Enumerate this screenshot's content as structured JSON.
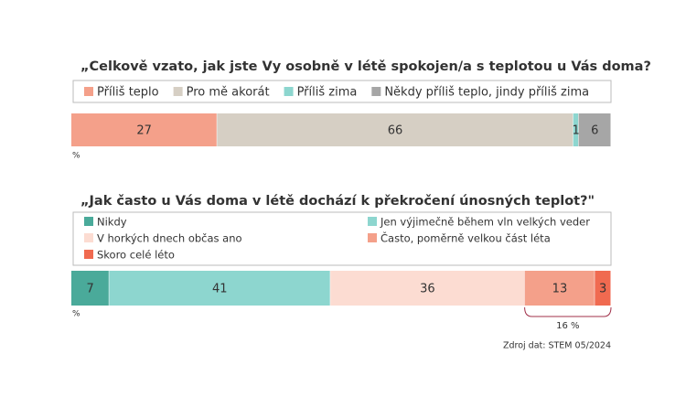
{
  "chart_data": [
    {
      "type": "stacked-bar",
      "title": "„Celkově vzato, jak jste Vy osobně v létě spokojen/a s teplotou u Vás doma?",
      "unit": "%",
      "series": [
        {
          "name": "Příliš teplo",
          "color": "#f4a08a",
          "values": [
            27
          ]
        },
        {
          "name": "Pro mě akorát",
          "color": "#d6cfc4",
          "values": [
            66
          ]
        },
        {
          "name": "Příliš zima",
          "color": "#8dd6cf",
          "values": [
            1
          ]
        },
        {
          "name": "Někdy příliš teplo, jindy příliš zima",
          "color": "#a6a6a6",
          "values": [
            6
          ]
        }
      ]
    },
    {
      "type": "stacked-bar",
      "title": "„Jak často u Vás doma v létě dochází k překročení únosných teplot?\"",
      "unit": "%",
      "series": [
        {
          "name": "Nikdy",
          "color": "#4aaa9a",
          "values": [
            7
          ]
        },
        {
          "name": "Jen výjimečně během vln velkých veder",
          "color": "#8dd6cf",
          "values": [
            41
          ]
        },
        {
          "name": "V horkých dnech občas ano",
          "color": "#fcdcd2",
          "values": [
            36
          ]
        },
        {
          "name": "Často, poměrně velkou část léta",
          "color": "#f4a08a",
          "values": [
            13
          ]
        },
        {
          "name": "Skoro celé léto",
          "color": "#f06a50",
          "values": [
            3
          ]
        }
      ],
      "annotation": "16 %",
      "source": "Zdroj dat: STEM 05/2024"
    }
  ]
}
